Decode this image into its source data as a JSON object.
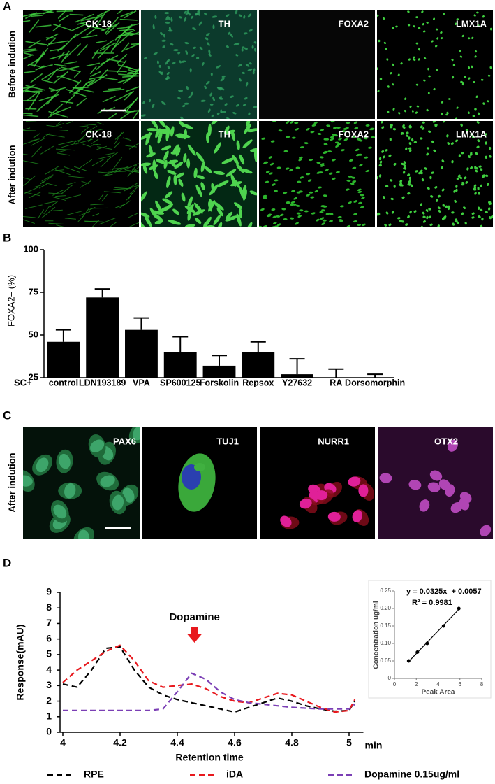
{
  "figure": {
    "panel_labels": [
      "A",
      "B",
      "C",
      "D"
    ],
    "panel_a": {
      "row_labels": [
        "Before indution",
        "After indution"
      ],
      "tiles": [
        [
          "CK-18",
          "TH",
          "FOXA2",
          "LMX1A"
        ],
        [
          "CK-18",
          "TH",
          "FOXA2",
          "LMX1A"
        ]
      ]
    },
    "panel_c": {
      "row_label": "After indution",
      "tiles": [
        "PAX6",
        "TUJ1",
        "NURR1",
        "OTX2"
      ]
    }
  },
  "chart_data": [
    {
      "type": "bar",
      "ylabel": "FOXA2+ (%)",
      "prefix_label": "SC+",
      "categories": [
        "control",
        "LDN193189",
        "VPA",
        "SP600125",
        "Forskolin",
        "Repsox",
        "Y27632",
        "RA",
        "Dorsomorphin"
      ],
      "values": [
        46,
        72,
        53,
        40,
        32,
        40,
        27,
        25,
        25
      ],
      "errors": [
        7,
        5,
        7,
        9,
        6,
        6,
        9,
        5,
        2
      ],
      "color": "#000000",
      "ylim": [
        25,
        100
      ],
      "yticks": [
        25,
        50,
        75,
        100
      ]
    },
    {
      "type": "line",
      "xlabel": "Retention time",
      "ylabel": "Response(mAU)",
      "x_unit": "min",
      "annotation": {
        "text": "Dopamine",
        "x": 4.46
      },
      "x": [
        4,
        4.05,
        4.1,
        4.15,
        4.2,
        4.25,
        4.3,
        4.35,
        4.4,
        4.45,
        4.5,
        4.55,
        4.6,
        4.65,
        4.7,
        4.75,
        4.8,
        4.85,
        4.9,
        4.95,
        5,
        5.02
      ],
      "series": [
        {
          "name": "RPE",
          "color": "#000000",
          "values": [
            3.1,
            2.9,
            4.0,
            5.4,
            5.5,
            4.0,
            2.9,
            2.4,
            2.1,
            1.9,
            1.7,
            1.5,
            1.3,
            1.6,
            1.9,
            2.2,
            2.0,
            1.7,
            1.5,
            1.35,
            1.4,
            2.0
          ]
        },
        {
          "name": "iDA",
          "color": "#e8191e",
          "values": [
            3.2,
            4.0,
            4.6,
            5.2,
            5.6,
            4.6,
            3.3,
            2.9,
            3.0,
            3.1,
            2.8,
            2.3,
            2.0,
            1.9,
            2.2,
            2.5,
            2.4,
            2.0,
            1.6,
            1.3,
            1.4,
            2.1
          ]
        },
        {
          "name": "Dopamine 0.15ug/ml",
          "color": "#7b3fb5",
          "values": [
            1.4,
            1.4,
            1.4,
            1.4,
            1.4,
            1.4,
            1.4,
            1.5,
            2.6,
            3.8,
            3.4,
            2.6,
            2.1,
            1.9,
            1.8,
            1.7,
            1.6,
            1.55,
            1.5,
            1.5,
            1.5,
            1.8
          ]
        }
      ],
      "line_style": "dashed",
      "legend": "bottom",
      "xlim": [
        4,
        5.05
      ],
      "xticks": [
        4,
        4.2,
        4.4,
        4.6,
        4.8,
        5
      ],
      "ylim": [
        0,
        9
      ],
      "yticks": [
        0,
        1,
        2,
        3,
        4,
        5,
        6,
        7,
        8,
        9
      ]
    },
    {
      "type": "scatter",
      "xlabel": "Peak Area",
      "ylabel": "Concentration ug/ml",
      "equation": "y = 0.0325x  + 0.0057",
      "r_squared": "R² = 0.9981",
      "trendline": true,
      "x": [
        1.3,
        2.1,
        3.0,
        4.5,
        5.9
      ],
      "values": [
        0.05,
        0.075,
        0.1,
        0.15,
        0.2
      ],
      "color": "#000000",
      "xlim": [
        0,
        8
      ],
      "xticks": [
        0,
        2,
        4,
        6,
        8
      ],
      "ylim": [
        0,
        0.25
      ],
      "yticks": [
        0,
        0.05,
        {
          "value": 0.1,
          "label": "0.10"
        },
        0.15,
        {
          "value": 0.2,
          "label": "0.20"
        },
        0.25
      ]
    }
  ]
}
